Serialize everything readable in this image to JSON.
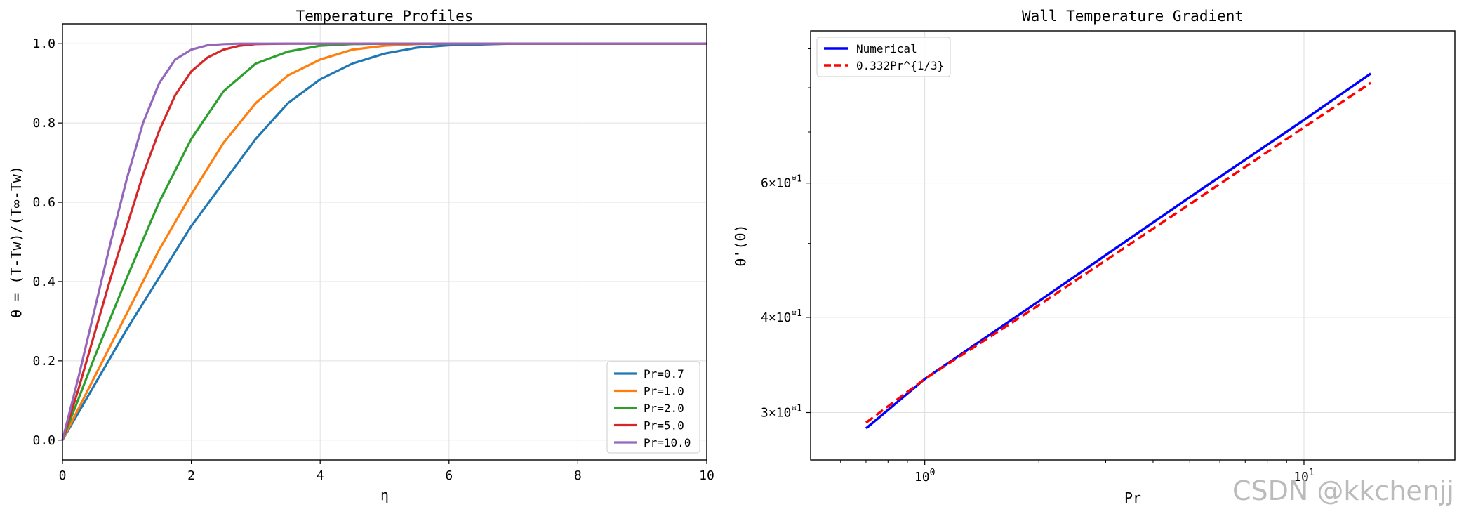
{
  "watermark": "CSDN @kkchenjj",
  "chart_data": [
    {
      "type": "line",
      "title": "Temperature Profiles",
      "xlabel": "η",
      "ylabel": "θ = (T-Tw)/(T∞-Tw)",
      "xlim": [
        0,
        10
      ],
      "ylim": [
        -0.05,
        1.05
      ],
      "xticks": [
        "0",
        "2",
        "4",
        "6",
        "8",
        "10"
      ],
      "yticks": [
        "0.0",
        "0.2",
        "0.4",
        "0.6",
        "0.8",
        "1.0"
      ],
      "grid": true,
      "legend_position": "lower-right",
      "series": [
        {
          "name": "Pr=0.7",
          "color": "#1f77b4",
          "x": [
            0,
            0.5,
            1,
            1.5,
            2,
            2.5,
            3,
            3.5,
            4,
            4.5,
            5,
            5.5,
            6,
            7,
            8,
            10
          ],
          "y": [
            0,
            0.14,
            0.28,
            0.41,
            0.54,
            0.65,
            0.76,
            0.85,
            0.91,
            0.95,
            0.975,
            0.99,
            0.996,
            1.0,
            1.0,
            1.0
          ]
        },
        {
          "name": "Pr=1.0",
          "color": "#ff7f0e",
          "x": [
            0,
            0.5,
            1,
            1.5,
            2,
            2.5,
            3,
            3.5,
            4,
            4.5,
            5,
            5.5,
            6,
            8,
            10
          ],
          "y": [
            0,
            0.16,
            0.32,
            0.48,
            0.62,
            0.75,
            0.85,
            0.92,
            0.96,
            0.985,
            0.995,
            0.999,
            1.0,
            1.0,
            1.0
          ]
        },
        {
          "name": "Pr=2.0",
          "color": "#2ca02c",
          "x": [
            0,
            0.5,
            1,
            1.5,
            2,
            2.5,
            3,
            3.5,
            4,
            4.5,
            5,
            6,
            8,
            10
          ],
          "y": [
            0,
            0.21,
            0.41,
            0.6,
            0.76,
            0.88,
            0.95,
            0.98,
            0.995,
            0.999,
            1.0,
            1.0,
            1.0,
            1.0
          ]
        },
        {
          "name": "Pr=5.0",
          "color": "#d62728",
          "x": [
            0,
            0.25,
            0.5,
            0.75,
            1,
            1.25,
            1.5,
            1.75,
            2,
            2.25,
            2.5,
            2.75,
            3,
            3.5,
            4,
            5,
            10
          ],
          "y": [
            0,
            0.13,
            0.27,
            0.41,
            0.54,
            0.67,
            0.78,
            0.87,
            0.93,
            0.965,
            0.985,
            0.995,
            0.999,
            1.0,
            1.0,
            1.0,
            1.0
          ]
        },
        {
          "name": "Pr=10.0",
          "color": "#9467bd",
          "x": [
            0,
            0.25,
            0.5,
            0.75,
            1,
            1.25,
            1.5,
            1.75,
            2,
            2.25,
            2.5,
            2.75,
            3,
            4,
            10
          ],
          "y": [
            0,
            0.16,
            0.33,
            0.5,
            0.66,
            0.8,
            0.9,
            0.96,
            0.985,
            0.996,
            0.999,
            1.0,
            1.0,
            1.0,
            1.0
          ]
        }
      ]
    },
    {
      "type": "line",
      "title": "Wall Temperature Gradient",
      "xlabel": "Pr",
      "ylabel": "θ'(0)",
      "xscale": "log",
      "yscale": "log",
      "xlim": [
        0.5,
        25
      ],
      "ylim": [
        26,
        95
      ],
      "xticks": [
        {
          "value": 1,
          "base": "10",
          "exp": "0"
        },
        {
          "value": 10,
          "base": "10",
          "exp": "1"
        }
      ],
      "yticks": [
        {
          "value": 30,
          "mant": "3",
          "base": "10",
          "exp": "¤1"
        },
        {
          "value": 40,
          "mant": "4",
          "base": "10",
          "exp": "¤1"
        },
        {
          "value": 60,
          "mant": "6",
          "base": "10",
          "exp": "¤1"
        }
      ],
      "x_minor_ticks": [
        0.6,
        0.7,
        0.8,
        0.9,
        2,
        3,
        4,
        5,
        6,
        7,
        8,
        9,
        20
      ],
      "y_minor_ticks": [
        50,
        70,
        80,
        90
      ],
      "grid": true,
      "legend_position": "upper-left",
      "series": [
        {
          "name": "Numerical",
          "color": "#0000ff",
          "style": "solid",
          "x": [
            0.7,
            1,
            2,
            5,
            10,
            15
          ],
          "y": [
            28.6,
            33.2,
            42.0,
            57.5,
            72.6,
            83.5
          ]
        },
        {
          "name": "0.332Pr^{1/3}",
          "color": "#ff0000",
          "style": "dashed",
          "x": [
            0.7,
            1,
            2,
            5,
            10,
            15
          ],
          "y": [
            29.1,
            33.2,
            41.5,
            56.3,
            71.0,
            81.2
          ]
        }
      ]
    }
  ]
}
